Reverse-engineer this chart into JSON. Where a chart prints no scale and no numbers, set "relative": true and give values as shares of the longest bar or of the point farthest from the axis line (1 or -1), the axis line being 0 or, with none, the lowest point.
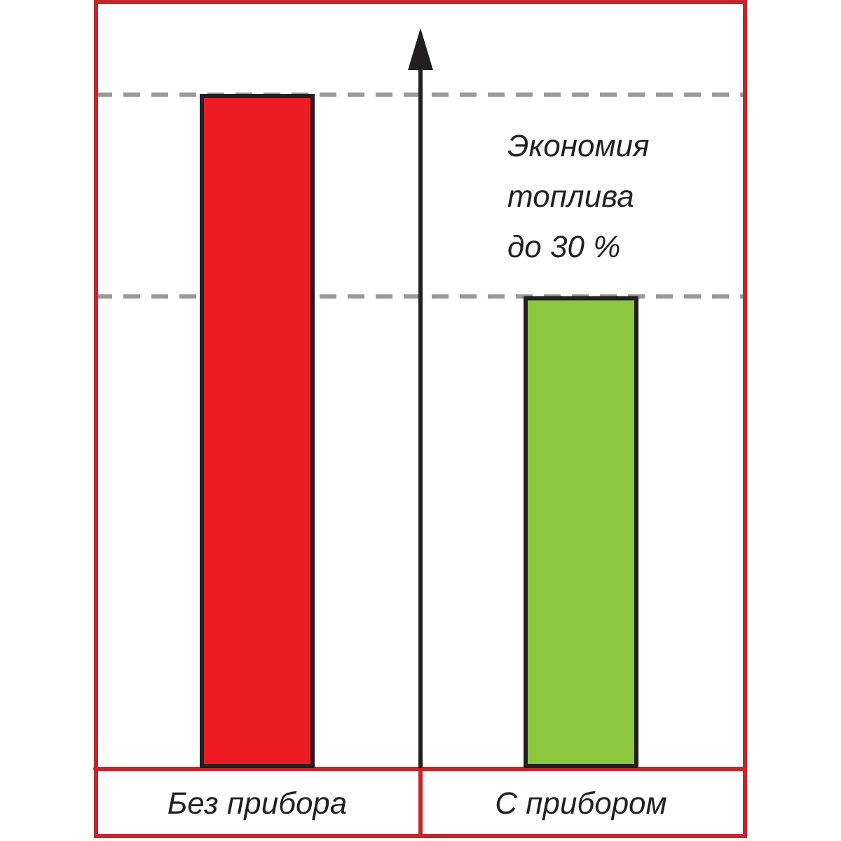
{
  "chart_data": {
    "type": "bar",
    "categories": [
      "Без прибора",
      "С прибором"
    ],
    "values": [
      1,
      0.7
    ],
    "colors": [
      "#ed1c24",
      "#8dc63f"
    ],
    "relative": true,
    "ref_lines": [
      {
        "axis": "y",
        "value": 1,
        "color": "#999999",
        "line_style": "dashed"
      },
      {
        "axis": "y",
        "value": 0.7,
        "color": "#999999",
        "line_style": "dashed"
      }
    ],
    "annotations": [
      "Экономия\nтоплива\nдо 30 %"
    ]
  }
}
